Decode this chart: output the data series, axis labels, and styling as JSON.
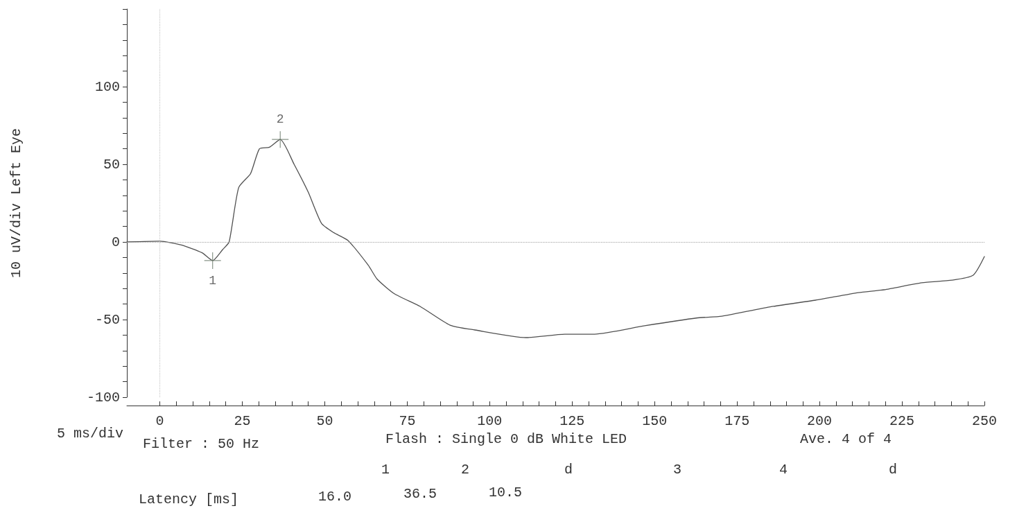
{
  "chart_data": {
    "type": "line",
    "ylabel": "10 uV/div Left Eye",
    "xlabel": "5 ms/div",
    "xlim": [
      -10,
      250
    ],
    "xticks": [
      0,
      25,
      50,
      75,
      100,
      125,
      150,
      175,
      200,
      225,
      250
    ],
    "ylim": [
      -100,
      150
    ],
    "yticks": [
      -100,
      -50,
      0,
      50,
      100,
      {
        "value": 150,
        "label": null
      }
    ],
    "marker": "none",
    "line_style": "solid",
    "series": [
      {
        "color": "#505050",
        "x": [
          -10,
          0,
          6.5,
          12.8,
          16,
          19,
          21,
          23.9,
          27.5,
          30.2,
          33.2,
          36.5,
          40.7,
          45,
          49,
          52.7,
          57,
          63.2,
          65.9,
          71.2,
          78.9,
          88,
          95.5,
          111,
          122.8,
          131.8,
          147,
          162.7,
          170.4,
          186,
          198.8,
          211.8,
          219.6,
          231,
          240.2,
          246.6,
          250
        ],
        "values": [
          0,
          0.5,
          -2,
          -7,
          -12,
          -5,
          0,
          35,
          44,
          60,
          61,
          66,
          50,
          32,
          12,
          6,
          1,
          -15,
          -24,
          -33.5,
          -41.5,
          -53.6,
          -56.7,
          -61.6,
          -59.4,
          -59.4,
          -54,
          -49,
          -47.8,
          -41.5,
          -37.5,
          -32.6,
          -30.8,
          -26.3,
          -24.6,
          -21.4,
          -9.4
        ]
      }
    ],
    "ref_lines": [
      {
        "axis": "x",
        "value": 0,
        "line_style": "dotted",
        "color": "#c8c8c8"
      },
      {
        "axis": "y",
        "value": 0,
        "line_style": "dotted",
        "color": "#a0a0a0"
      }
    ],
    "annotations": [
      {
        "text": "1",
        "x": 16,
        "y": -12
      },
      {
        "text": "2",
        "x": 36.5,
        "y": 66
      },
      "Filter : 50 Hz",
      "Flash : Single 0 dB White LED",
      "Ave. 4 of 4",
      "1",
      "2",
      "d",
      "3",
      "4",
      "d",
      "Latency [ms]",
      "16.0",
      "36.5",
      "10.5"
    ]
  }
}
